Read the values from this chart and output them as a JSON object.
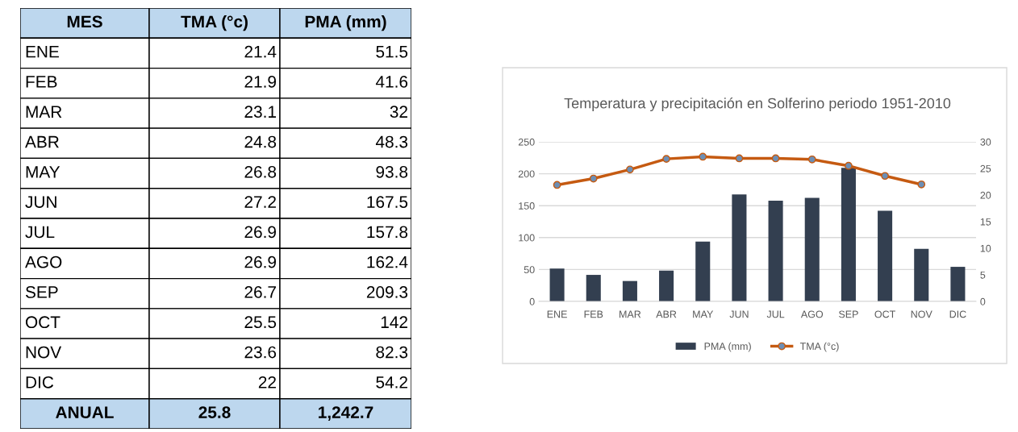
{
  "chart_data": [
    {
      "type": "other",
      "annotations": [
        "MES",
        "ANUAL"
      ],
      "categories": [
        "ENE",
        "FEB",
        "MAR",
        "ABR",
        "MAY",
        "JUN",
        "JUL",
        "AGO",
        "SEP",
        "OCT",
        "NOV",
        "DIC"
      ],
      "data_labels": true,
      "totals": [
        "25.8",
        "1,242.7"
      ],
      "series": [
        {
          "name": "TMA (°c)",
          "color": "#000000",
          "values": [
            21.4,
            21.9,
            23.1,
            24.8,
            26.8,
            27.2,
            26.9,
            26.9,
            26.7,
            25.5,
            23.6,
            22
          ]
        },
        {
          "name": "PMA (mm)",
          "color": "#000000",
          "values": [
            51.5,
            41.6,
            32,
            48.3,
            93.8,
            167.5,
            157.8,
            162.4,
            209.3,
            142,
            82.3,
            54.2
          ]
        }
      ]
    },
    {
      "type": "bar",
      "title": "Temperatura y precipitación en Solferino periodo 1951-2010",
      "categories": [
        "ENE",
        "FEB",
        "MAR",
        "ABR",
        "MAY",
        "JUN",
        "JUL",
        "AGO",
        "SEP",
        "OCT",
        "NOV",
        "DIC"
      ],
      "ylim": [
        0,
        250
      ],
      "yticks": [
        0,
        50,
        100,
        150,
        200,
        250
      ],
      "y2lim": [
        0,
        30
      ],
      "y2ticks": [
        0,
        5,
        10,
        15,
        20,
        25,
        30
      ],
      "grid": "y",
      "legend": "bottom",
      "marker": "circle",
      "series": [
        {
          "name": "PMA (mm)",
          "type": "bar",
          "color": "#333f50",
          "values": [
            51.5,
            41.6,
            32,
            48.3,
            93.8,
            167.5,
            157.8,
            162.4,
            209.3,
            142,
            82.3,
            54.2
          ]
        },
        {
          "name": "TMA (°c)",
          "type": "line",
          "axis": "y2",
          "color": "#c55a11",
          "values": [
            21.9,
            23.1,
            24.8,
            26.8,
            27.2,
            26.9,
            26.9,
            26.7,
            25.5,
            23.6,
            22,
            null
          ]
        }
      ]
    }
  ]
}
